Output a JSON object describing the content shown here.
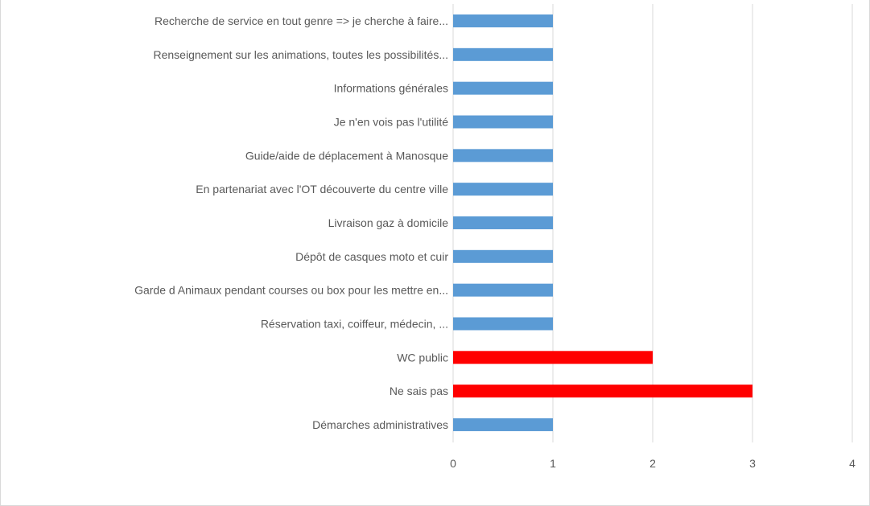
{
  "chart_data": {
    "type": "bar",
    "orientation": "horizontal",
    "title": "",
    "xlabel": "",
    "ylabel": "",
    "xlim": [
      0,
      4
    ],
    "x_ticks": [
      "0",
      "1",
      "2",
      "3",
      "4"
    ],
    "grid": true,
    "legend": "none",
    "categories": [
      "Recherche de service en tout genre => je cherche à faire...",
      "Renseignement sur les animations, toutes les possibilités...",
      "Informations générales",
      "Je n'en vois pas l'utilité",
      "Guide/aide de déplacement à Manosque",
      "En partenariat avec l'OT découverte du centre ville",
      "Livraison gaz à domicile",
      "Dépôt de casques moto et cuir",
      "Garde d Animaux pendant courses ou box pour les mettre en...",
      "Réservation taxi, coiffeur, médecin, ...",
      "WC public",
      "Ne sais pas",
      "Démarches administratives"
    ],
    "values": [
      1,
      1,
      1,
      1,
      1,
      1,
      1,
      1,
      1,
      1,
      2,
      3,
      1
    ],
    "bar_colors": [
      "#5b9bd5",
      "#5b9bd5",
      "#5b9bd5",
      "#5b9bd5",
      "#5b9bd5",
      "#5b9bd5",
      "#5b9bd5",
      "#5b9bd5",
      "#5b9bd5",
      "#5b9bd5",
      "#ff0000",
      "#ff0000",
      "#5b9bd5"
    ]
  }
}
